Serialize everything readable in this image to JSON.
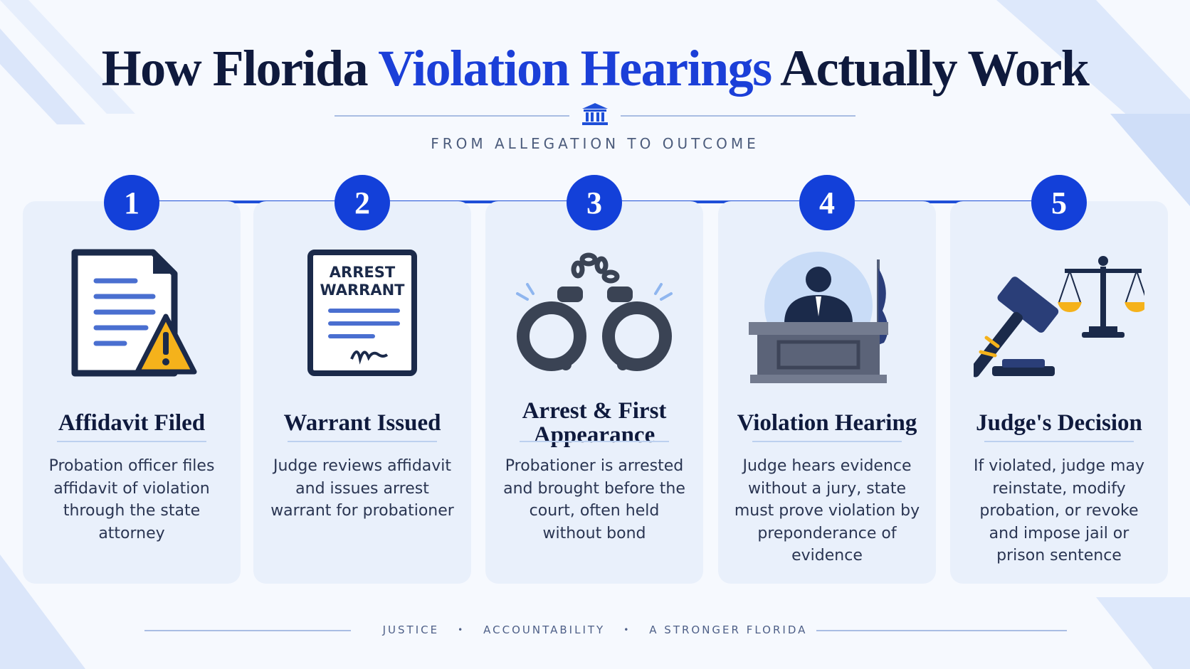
{
  "header": {
    "title": {
      "before": "How Florida",
      "highlight": "Violation Hearings",
      "after": "Actually Work"
    },
    "subtitle": "FROM ALLEGATION TO OUTCOME"
  },
  "steps": [
    {
      "number": 1,
      "title": "Affidavit Filed",
      "description": "Probation officer files affidavit of violation through the state attorney"
    },
    {
      "number": 2,
      "title": "Warrant Issued",
      "description": "Judge reviews affidavit and issues arrest warrant for probationer",
      "icon_text": [
        "ARREST",
        "WARRANT"
      ]
    },
    {
      "number": 3,
      "title": "Arrest & First Appearance",
      "description": "Probationer is arrested and brought before the court, often held without bond"
    },
    {
      "number": 4,
      "title": "Violation Hearing",
      "description": "Judge hears evidence without a jury, state must prove violation by preponderance of evidence"
    },
    {
      "number": 5,
      "title": "Judge's Decision",
      "description": "If violated, judge may reinstate, modify probation, or revoke and impose jail or prison sentence"
    }
  ],
  "footer": {
    "items": [
      "JUSTICE",
      "ACCOUNTABILITY",
      "A STRONGER FLORIDA"
    ]
  }
}
